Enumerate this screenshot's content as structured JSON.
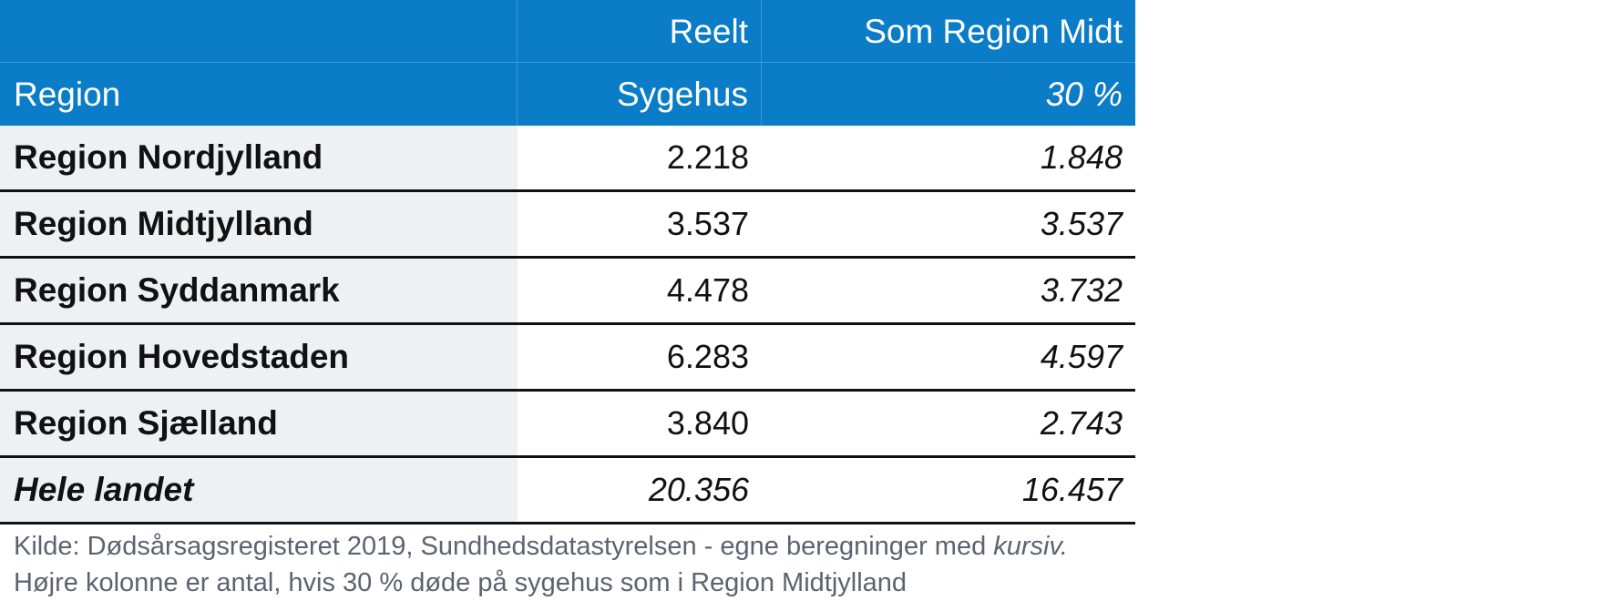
{
  "table": {
    "header_row1": {
      "col1": "",
      "col2": "Reelt",
      "col3": "Som Region Midt"
    },
    "header_row2": {
      "col1": "Region",
      "col2": "Sygehus",
      "col3": "30 %"
    },
    "rows": [
      {
        "region": "Region Nordjylland",
        "reelt": "2.218",
        "midt": "1.848"
      },
      {
        "region": "Region Midtjylland",
        "reelt": "3.537",
        "midt": "3.537"
      },
      {
        "region": "Region Syddanmark",
        "reelt": "4.478",
        "midt": "3.732"
      },
      {
        "region": "Region Hovedstaden",
        "reelt": "6.283",
        "midt": "4.597"
      },
      {
        "region": "Region Sjælland",
        "reelt": "3.840",
        "midt": "2.743"
      }
    ],
    "total": {
      "region": "Hele landet",
      "reelt": "20.356",
      "midt": "16.457"
    }
  },
  "notes": {
    "line1_prefix": "Kilde: Dødsårsagsregisteret 2019, Sundhedsdatastyrelsen - egne beregninger med ",
    "line1_italic": "kursiv.",
    "line2": "Højre kolonne er antal, hvis 30 % døde på sygehus som i Region Midtjylland"
  },
  "colors": {
    "header_bg": "#0a7cc8",
    "first_col_bg": "#eef1f4",
    "note_text": "#5a6470"
  }
}
